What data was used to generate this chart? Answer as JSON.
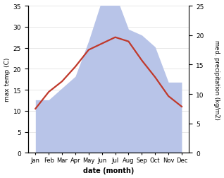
{
  "months": [
    "Jan",
    "Feb",
    "Mar",
    "Apr",
    "May",
    "Jun",
    "Jul",
    "Aug",
    "Sep",
    "Oct",
    "Nov",
    "Dec"
  ],
  "temperature": [
    10.5,
    14.5,
    17.0,
    20.5,
    24.5,
    26.0,
    27.5,
    26.5,
    22.0,
    18.0,
    13.5,
    11.0
  ],
  "precipitation": [
    9,
    9,
    11,
    13,
    19,
    26,
    27,
    21,
    20,
    18,
    12,
    12
  ],
  "temp_color": "#c0392b",
  "precip_fill_color": "#b8c4e8",
  "left_label": "max temp (C)",
  "right_label": "med. precipitation (kg/m2)",
  "xlabel": "date (month)",
  "left_ylim": [
    0,
    35
  ],
  "right_ylim": [
    0,
    25
  ],
  "left_yticks": [
    0,
    5,
    10,
    15,
    20,
    25,
    30,
    35
  ],
  "right_yticks": [
    0,
    5,
    10,
    15,
    20,
    25
  ],
  "bg_color": "#ffffff",
  "temp_linewidth": 1.6,
  "grid_color": "#dddddd"
}
